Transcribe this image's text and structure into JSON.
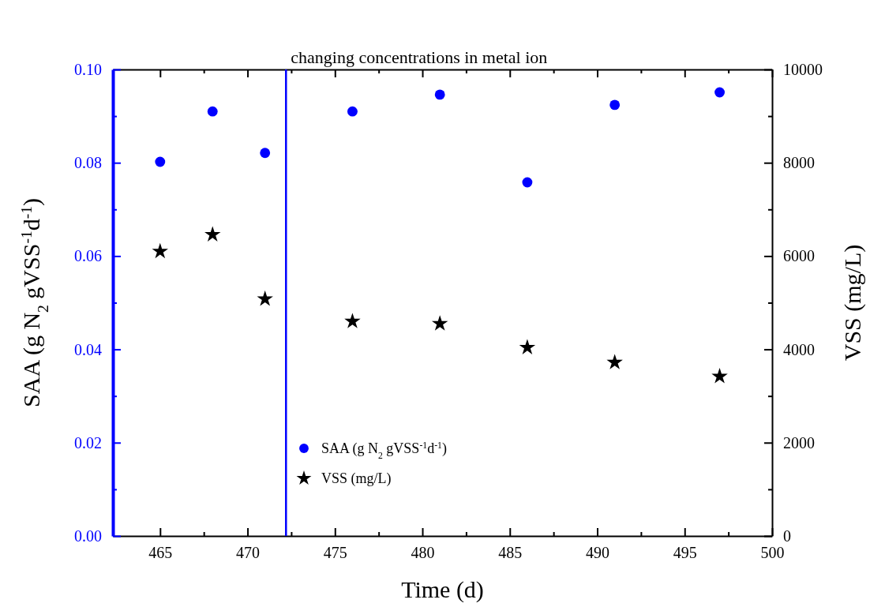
{
  "chart_data": {
    "type": "scatter",
    "xlabel": "Time (d)",
    "ylabel": "SAA (g N$_{2}$ gVSS$^{-1}$d$^{-1}$)",
    "y2label": "VSS (mg/L)",
    "x": [
      465,
      468,
      471,
      476,
      481,
      486,
      491,
      497
    ],
    "series": [
      {
        "name": "SAA (g N$_{2}$ gVSS$^{-1}$d$^{-1}$)",
        "color": "#0000ff",
        "marker": "circle",
        "values": [
          0.0802,
          0.091,
          0.0821,
          0.091,
          0.0946,
          0.0758,
          0.0924,
          0.0951
        ]
      },
      {
        "name": "VSS (mg/L)",
        "color": "#000000",
        "marker": "star",
        "axis": "y2",
        "values": [
          6100,
          6460,
          5080,
          4600,
          4550,
          4040,
          3720,
          3420
        ]
      }
    ],
    "xlim": [
      462.3,
      500
    ],
    "xticks": [
      465,
      {
        "value": 467.5,
        "label": null
      },
      470,
      {
        "value": 472.5,
        "label": null
      },
      475,
      {
        "value": 477.5,
        "label": null
      },
      480,
      {
        "value": 482.5,
        "label": null
      },
      485,
      {
        "value": 487.5,
        "label": null
      },
      490,
      {
        "value": 492.5,
        "label": null
      },
      495,
      {
        "value": 497.5,
        "label": null
      },
      500
    ],
    "ylim": [
      0,
      0.1
    ],
    "yticks": [
      {
        "value": 0,
        "label": "0.00"
      },
      {
        "value": 0.01,
        "label": null
      },
      {
        "value": 0.02,
        "label": "0.02"
      },
      {
        "value": 0.03,
        "label": null
      },
      {
        "value": 0.04,
        "label": "0.04"
      },
      {
        "value": 0.05,
        "label": null
      },
      {
        "value": 0.06,
        "label": "0.06"
      },
      {
        "value": 0.07,
        "label": null
      },
      {
        "value": 0.08,
        "label": "0.08"
      },
      {
        "value": 0.09,
        "label": null
      },
      {
        "value": 0.1,
        "label": "0.10"
      }
    ],
    "y2lim": [
      0,
      10000
    ],
    "y2ticks": [
      0,
      {
        "value": 1000,
        "label": null
      },
      2000,
      {
        "value": 3000,
        "label": null
      },
      4000,
      {
        "value": 5000,
        "label": null
      },
      6000,
      {
        "value": 7000,
        "label": null
      },
      8000,
      {
        "value": 9000,
        "label": null
      },
      10000
    ],
    "ref_lines": [
      {
        "axis": "x",
        "value": 472.2,
        "label": "changing concentrations in metal ion",
        "color": "#0000ff"
      }
    ],
    "legend": "bottom left",
    "grid": false
  }
}
